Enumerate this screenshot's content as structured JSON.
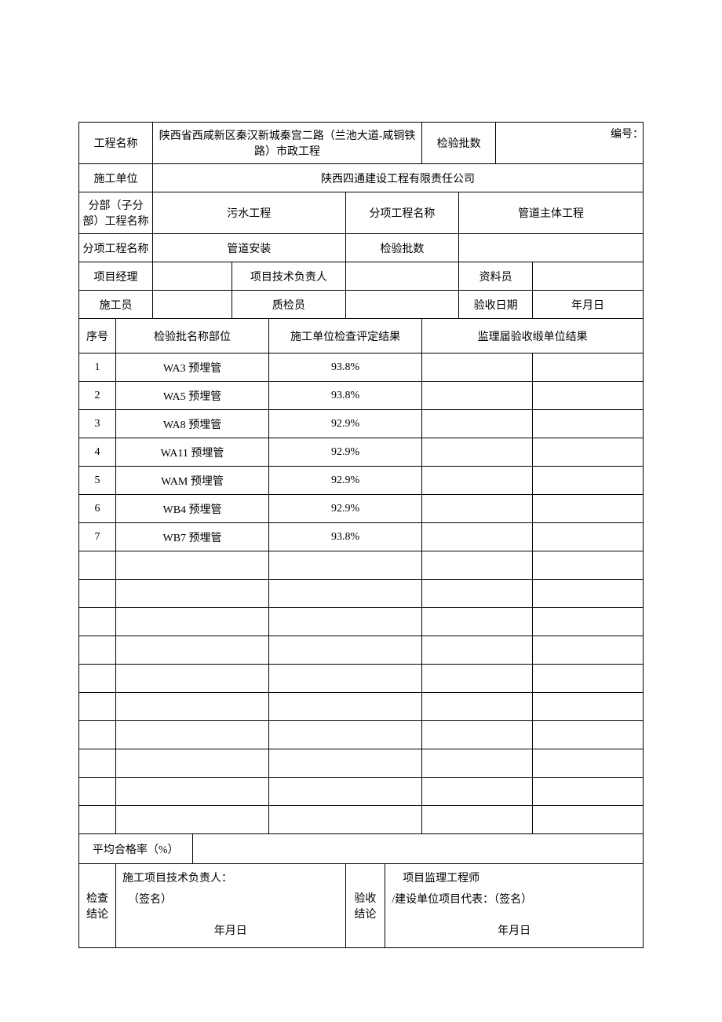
{
  "doc_number_label": "编号：",
  "header": {
    "project_name_label": "工程名称",
    "project_name_value": "陕西省西咸新区秦汉新城秦宫二路（兰池大道-咸铜铁路）市政工程",
    "inspect_batch_count_label": "检验批数",
    "inspect_batch_count_value": "",
    "construction_unit_label": "施工单位",
    "construction_unit_value": "陕西四通建设工程有限责任公司",
    "division_name_label": "分部（子分部）工程名称",
    "division_name_value": "污水工程",
    "subitem_name_label_1": "分项工程名称",
    "subitem_name_value_1": "管道主体工程",
    "subitem_name_label_2": "分项工程名称",
    "subitem_name_value_2": "管道安装",
    "inspect_batch_count_label_2": "检验批数",
    "inspect_batch_count_value_2": "",
    "pm_label": "项目经理",
    "pm_value": "",
    "tech_lead_label": "项目技术负责人",
    "tech_lead_value": "",
    "doc_clerk_label": "资料员",
    "doc_clerk_value": "",
    "builder_label": "施工员",
    "builder_value": "",
    "qc_label": "质检员",
    "qc_value": "",
    "accept_date_label": "验收日期",
    "accept_date_value": "年月日"
  },
  "columns": {
    "seq": "序号",
    "batch_name": "检验批名称部位",
    "self_check": "施工单位检查评定结果",
    "supervise": "监理届验收缎单位结果"
  },
  "rows": [
    {
      "seq": "1",
      "name": "WA3 预埋管",
      "result": "93.8%",
      "sup": ""
    },
    {
      "seq": "2",
      "name": "WA5 预埋管",
      "result": "93.8%",
      "sup": ""
    },
    {
      "seq": "3",
      "name": "WA8 预埋管",
      "result": "92.9%",
      "sup": ""
    },
    {
      "seq": "4",
      "name": "WA11 预埋管",
      "result": "92.9%",
      "sup": ""
    },
    {
      "seq": "5",
      "name": "WAM 预埋管",
      "result": "92.9%",
      "sup": ""
    },
    {
      "seq": "6",
      "name": "WB4 预埋管",
      "result": "92.9%",
      "sup": ""
    },
    {
      "seq": "7",
      "name": "WB7 预埋管",
      "result": "93.8%",
      "sup": ""
    },
    {
      "seq": "",
      "name": "",
      "result": "",
      "sup": ""
    },
    {
      "seq": "",
      "name": "",
      "result": "",
      "sup": ""
    },
    {
      "seq": "",
      "name": "",
      "result": "",
      "sup": ""
    },
    {
      "seq": "",
      "name": "",
      "result": "",
      "sup": ""
    },
    {
      "seq": "",
      "name": "",
      "result": "",
      "sup": ""
    },
    {
      "seq": "",
      "name": "",
      "result": "",
      "sup": ""
    },
    {
      "seq": "",
      "name": "",
      "result": "",
      "sup": ""
    },
    {
      "seq": "",
      "name": "",
      "result": "",
      "sup": ""
    },
    {
      "seq": "",
      "name": "",
      "result": "",
      "sup": ""
    },
    {
      "seq": "",
      "name": "",
      "result": "",
      "sup": ""
    }
  ],
  "pass_rate_label": "平均合格率（%）",
  "pass_rate_value": "",
  "conclusion": {
    "check_label": "检查结论",
    "check_sign_line1": "施工项目技术负责人：",
    "check_sign_line2": "（签名）",
    "check_date": "年月日",
    "accept_label": "验收结论",
    "accept_sign_line1": "项目监理工程师",
    "accept_sign_line2": "/建设单位项目代表：（签名）",
    "accept_date": "年月日"
  }
}
